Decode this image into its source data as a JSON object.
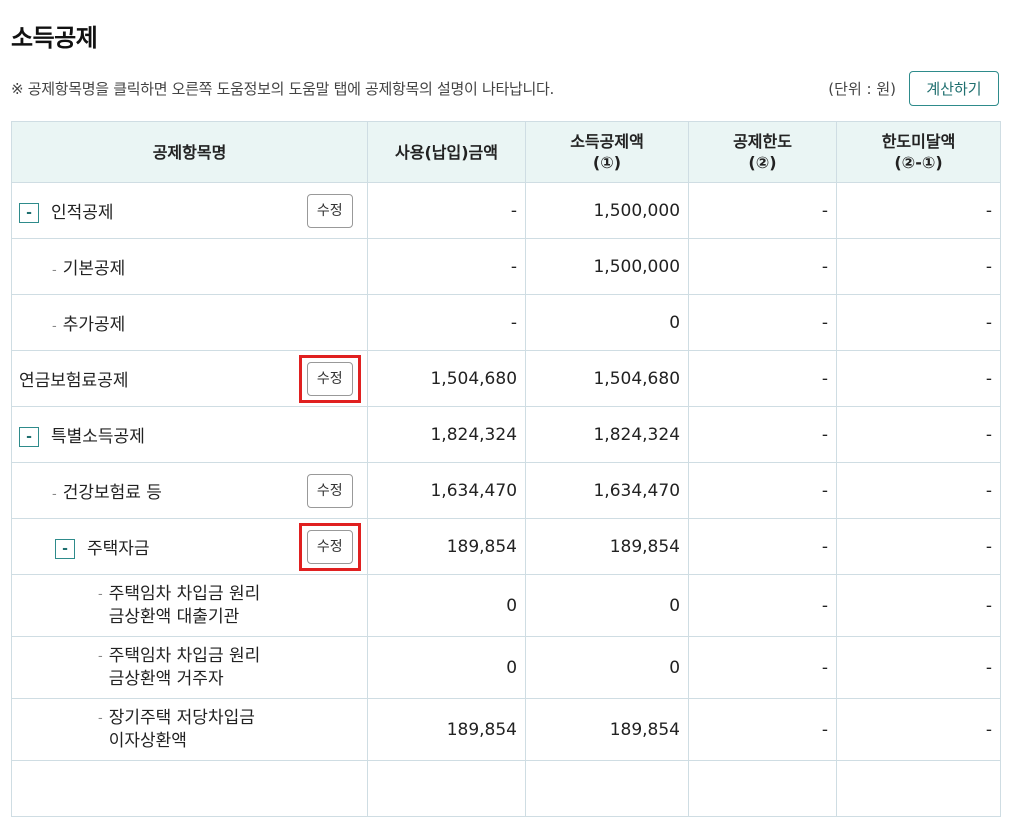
{
  "title": "소득공제",
  "notice": "※ 공제항목명을 클릭하면 오른쪽 도움정보의 도움말 탭에 공제항목의 설명이 나타납니다.",
  "unit_label": "(단위 : 원)",
  "calc_button": "계산하기",
  "headers": {
    "name": "공제항목명",
    "used": "사용(납입)금액",
    "deduction_1": "소득공제액",
    "deduction_2": "(①)",
    "limit_1": "공제한도",
    "limit_2": "(②)",
    "under_1": "한도미달액",
    "under_2": "(②-①)"
  },
  "toggle_symbol": "-",
  "dash_symbol": "-",
  "edit_label": "수정",
  "rows": [
    {
      "label": "인적공제",
      "used": "-",
      "deduction": "1,500,000",
      "limit": "-",
      "under": "-"
    },
    {
      "label": "기본공제",
      "used": "-",
      "deduction": "1,500,000",
      "limit": "-",
      "under": "-"
    },
    {
      "label": "추가공제",
      "used": "-",
      "deduction": "0",
      "limit": "-",
      "under": "-"
    },
    {
      "label": "연금보험료공제",
      "used": "1,504,680",
      "deduction": "1,504,680",
      "limit": "-",
      "under": "-"
    },
    {
      "label": "특별소득공제",
      "used": "1,824,324",
      "deduction": "1,824,324",
      "limit": "-",
      "under": "-"
    },
    {
      "label": "건강보험료 등",
      "used": "1,634,470",
      "deduction": "1,634,470",
      "limit": "-",
      "under": "-"
    },
    {
      "label": "주택자금",
      "used": "189,854",
      "deduction": "189,854",
      "limit": "-",
      "under": "-"
    },
    {
      "label_1": "주택임차 차입금 원리",
      "label_2": "금상환액 대출기관",
      "used": "0",
      "deduction": "0",
      "limit": "-",
      "under": "-"
    },
    {
      "label_1": "주택임차 차입금 원리",
      "label_2": "금상환액 거주자",
      "used": "0",
      "deduction": "0",
      "limit": "-",
      "under": "-"
    },
    {
      "label_1": "장기주택 저당차입금",
      "label_2": "이자상환액",
      "used": "189,854",
      "deduction": "189,854",
      "limit": "-",
      "under": "-"
    }
  ]
}
